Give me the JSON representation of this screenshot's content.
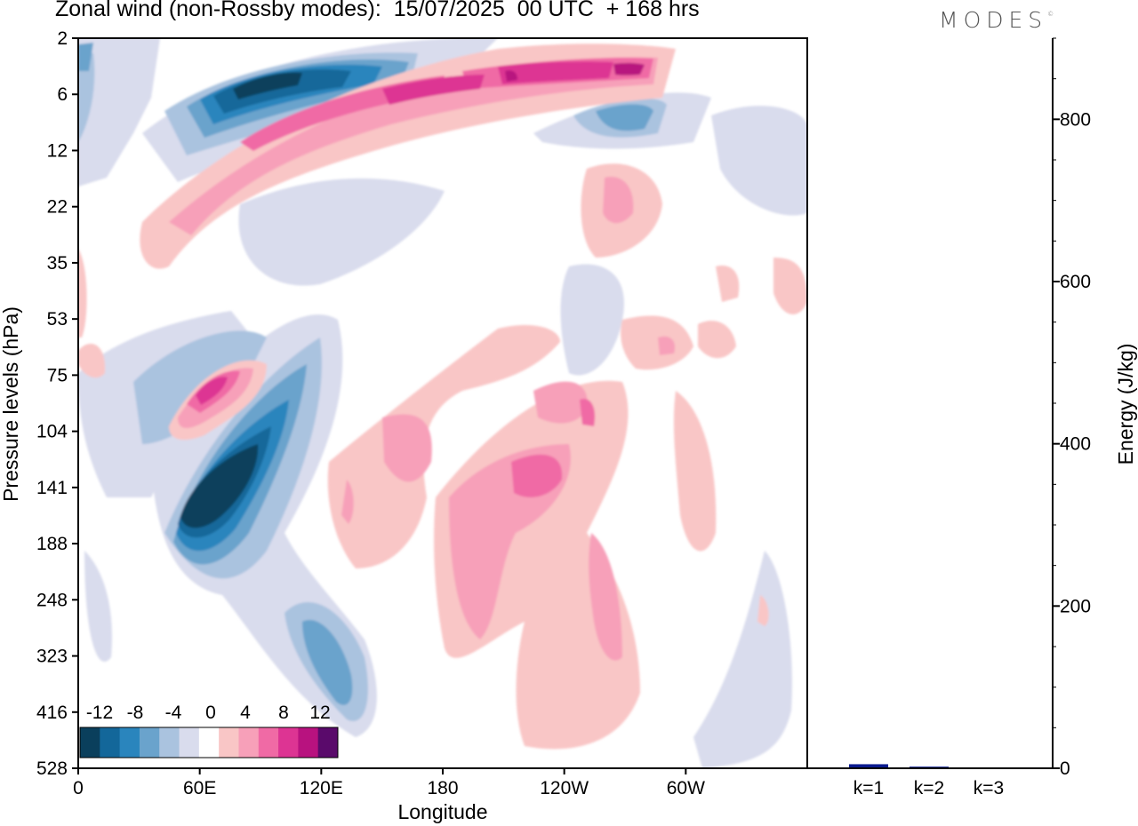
{
  "title": "Zonal wind (non-Rossby modes):  15/07/2025  00 UTC  + 168 hrs",
  "brand": "MODES",
  "brand_mark": "©",
  "chart_data": [
    {
      "type": "heatmap",
      "title": "Zonal wind (non-Rossby modes):  15/07/2025  00 UTC  + 168 hrs",
      "xlabel": "Longitude",
      "ylabel": "Pressure levels (hPa)",
      "x_ticks": [
        "0",
        "60E",
        "120E",
        "180",
        "120W",
        "60W"
      ],
      "x_tick_values": [
        0,
        60,
        120,
        180,
        240,
        300
      ],
      "xlim": [
        0,
        360
      ],
      "y_ticks": [
        "2",
        "6",
        "12",
        "22",
        "35",
        "53",
        "75",
        "104",
        "141",
        "188",
        "248",
        "323",
        "416",
        "528"
      ],
      "y_scale": "log-spaced pressure levels (top to bottom)",
      "colorbar": {
        "labels": [
          "-12",
          "-8",
          "-4",
          "0",
          "4",
          "8",
          "12"
        ],
        "levels": [
          -14,
          -12,
          -10,
          -8,
          -6,
          -4,
          -2,
          2,
          4,
          6,
          8,
          10,
          12,
          14
        ],
        "colors": [
          "#0a3f5c",
          "#13679a",
          "#2a85bd",
          "#6aa3cc",
          "#aac3df",
          "#d9dced",
          "#ffffff",
          "#f9c6c6",
          "#f7a0b9",
          "#f06aa5",
          "#dd3493",
          "#b8127f",
          "#5a0a6b"
        ],
        "placement": "bottom-left"
      },
      "features": [
        {
          "sign": "negative",
          "peak": -14,
          "lon": [
            55,
            85
          ],
          "pressure": "104-188 hPa",
          "note": "strongest easterly core"
        },
        {
          "sign": "positive",
          "peak": 12,
          "lon": [
            50,
            80
          ],
          "pressure": "75-104 hPa"
        },
        {
          "sign": "positive",
          "peak": 12,
          "lon": [
            150,
            290
          ],
          "pressure": "2-12 hPa",
          "note": "tilted stratospheric westerly band"
        },
        {
          "sign": "negative",
          "peak": -12,
          "lon": [
            40,
            150
          ],
          "pressure": "2-12 hPa"
        },
        {
          "sign": "positive",
          "peak": 6,
          "lon": [
            130,
            250
          ],
          "pressure": "104-323 hPa"
        }
      ],
      "grid": false
    },
    {
      "type": "bar",
      "categories": [
        "k=1",
        "k=2",
        "k=3"
      ],
      "values": [
        5,
        2,
        1
      ],
      "ylabel": "Energy (J/kg)",
      "ylim": [
        0,
        900
      ],
      "y_ticks": [
        "0",
        "200",
        "400",
        "600",
        "800"
      ],
      "y_tick_values": [
        0,
        200,
        400,
        600,
        800
      ],
      "y_minor_step": 50,
      "bar_color": "#0a1a8f",
      "axis_side": "right"
    }
  ]
}
